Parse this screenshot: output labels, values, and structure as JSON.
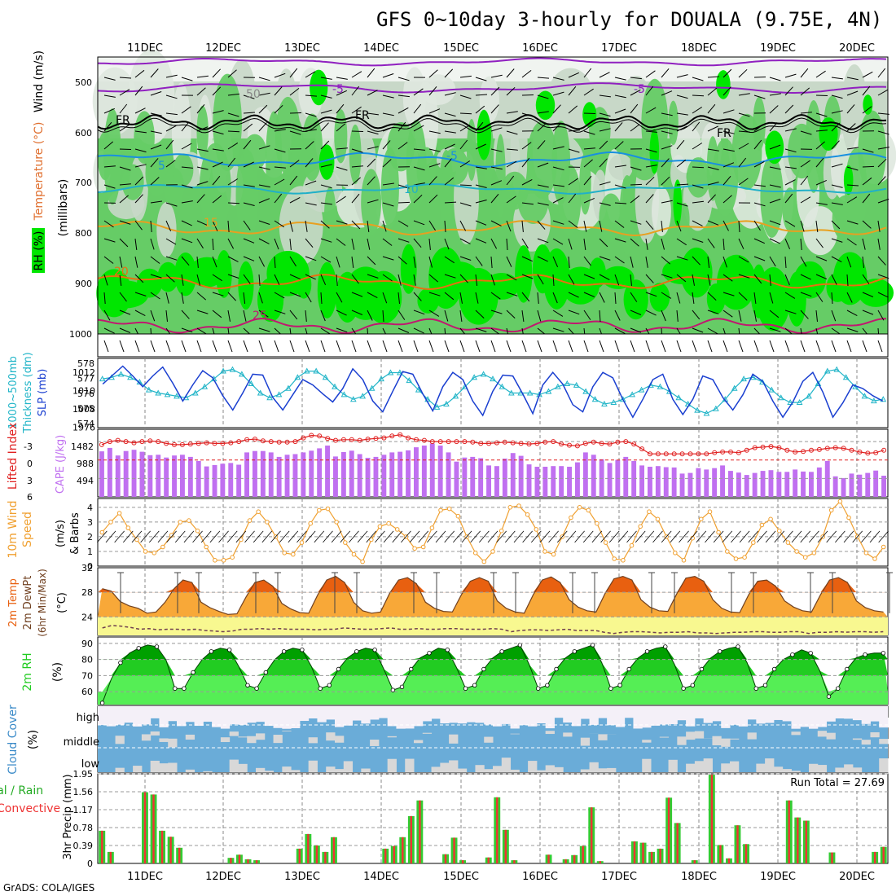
{
  "title": "GFS 0~10day 3-hourly for DOUALA (9.75E, 4N)",
  "credit": "GrADS: COLA/IGES",
  "dates": [
    "11DEC",
    "12DEC",
    "13DEC",
    "14DEC",
    "15DEC",
    "16DEC",
    "17DEC",
    "18DEC",
    "19DEC",
    "20DEC"
  ],
  "colors": {
    "rh_dark": "#00e600",
    "rh_mid": "#66cc66",
    "rh_light": "#c8d8c8",
    "slp": "#1a3fd0",
    "thick": "#22b5c8",
    "li": "#e02020",
    "cape": "#c070f0",
    "wind": "#f0a030",
    "temp_dark": "#e86010",
    "temp_mid": "#f8a838",
    "temp_low": "#f8f890",
    "rh2m_dark": "#00a000",
    "rh2m_mid": "#22cc22",
    "rh2m_light": "#55ee55",
    "cloud": "#6aacd8",
    "cloud_bg": "#d8d8d8",
    "rain": "#33cc33",
    "conv": "#ee3333"
  },
  "panels": {
    "upper": {
      "labels": [
        "Wind (m/s)",
        "Temperature (°C)",
        "RH (%)",
        "(millibars)"
      ],
      "yticks": [
        "500",
        "600",
        "700",
        "800",
        "900",
        "1000"
      ],
      "contours": [
        "-5",
        "-5",
        "FR",
        "FR",
        "FR",
        "5",
        "-5",
        "10",
        "15",
        "20",
        "25",
        "50"
      ]
    },
    "slp": {
      "labels": [
        "SLP (mb)",
        "Thickness (dm)",
        "1000~500mb"
      ],
      "yticks_left": [
        "578",
        "577",
        "576",
        "575",
        "574"
      ],
      "yticks_right": [
        "1012",
        "1010",
        "1008",
        "1976"
      ]
    },
    "li": {
      "labels": [
        "Lifted Index",
        "CAPE (J/kg)"
      ],
      "yticks_left": [
        "-3",
        "0",
        "3",
        "6"
      ],
      "yticks_right": [
        "1482",
        "988",
        "494"
      ]
    },
    "wind": {
      "labels": [
        "10m Wind",
        "Speed",
        "(m/s)",
        "& Barbs"
      ],
      "yticks": [
        "4",
        "3",
        "2",
        "1",
        "0"
      ]
    },
    "temp": {
      "labels": [
        "2m Temp",
        "2m DewPt",
        "(6hr Min/Max)",
        "(°C)"
      ],
      "yticks": [
        "32",
        "28",
        "24"
      ]
    },
    "rh": {
      "labels": [
        "2m RH",
        "(%)"
      ],
      "yticks": [
        "90",
        "80",
        "70",
        "60"
      ]
    },
    "cloud": {
      "labels": [
        "Cloud Cover",
        "(%)"
      ],
      "levels": [
        "high",
        "middle",
        "low"
      ]
    },
    "precip": {
      "labels": [
        "Total / Rain",
        "Convective",
        "3hr Precip (mm)"
      ],
      "yticks": [
        "1.95",
        "1.56",
        "1.17",
        "0.78",
        "0.39",
        "0"
      ],
      "run_total": "Run Total = 27.69"
    }
  },
  "chart_data": [
    {
      "type": "line",
      "name": "slp",
      "ylabel": "SLP (mb)",
      "ylim": [
        1006,
        1013
      ],
      "values": [
        1010.5,
        1011.5,
        1012.5,
        1011.4,
        1010.2,
        1011.4,
        1012.4,
        1010.6,
        1008.6,
        1010.4,
        1012.0,
        1011.2,
        1009.2,
        1007.6,
        1009.5,
        1011.6,
        1011.5,
        1009.0,
        1007.6,
        1009.3,
        1011.0,
        1010.4,
        1009.4,
        1008.5,
        1010.0,
        1012.2,
        1011.0,
        1008.6,
        1007.4,
        1009.7,
        1011.9,
        1011.6,
        1009.4,
        1007.5,
        1010.2,
        1011.8,
        1011.0,
        1008.6,
        1007.0,
        1009.7,
        1011.5,
        1011.4,
        1009.4,
        1007.2,
        1010.4,
        1011.8,
        1010.5,
        1008.2,
        1007.4,
        1010.2,
        1011.8,
        1011.2,
        1008.8,
        1006.8,
        1008.8,
        1011.0,
        1011.6,
        1008.8,
        1007.1,
        1008.8,
        1011.4,
        1011.0,
        1009.0,
        1007.6,
        1009.3,
        1011.6,
        1010.8,
        1008.6,
        1006.8,
        1008.5,
        1010.8,
        1011.8,
        1009.6,
        1006.8,
        1008.4,
        1010.4,
        1010.0,
        1009.2,
        1008.6
      ]
    },
    {
      "type": "line",
      "name": "thickness",
      "ylabel": "Thickness (dm)",
      "ylim": [
        574,
        578
      ],
      "values": [
        576.9,
        577.0,
        577.2,
        577.0,
        576.7,
        576.2,
        576.0,
        575.9,
        575.8,
        575.7,
        576.0,
        576.4,
        576.9,
        577.4,
        577.5,
        577.2,
        576.6,
        576.0,
        575.7,
        575.9,
        576.3,
        577.0,
        577.4,
        577.4,
        577.0,
        576.4,
        575.9,
        575.6,
        575.8,
        576.3,
        576.9,
        577.3,
        577.3,
        576.8,
        576.2,
        575.6,
        575.1,
        575.3,
        575.8,
        576.4,
        577.0,
        577.2,
        576.9,
        576.4,
        576.0,
        576.0,
        576.0,
        575.9,
        576.1,
        576.4,
        576.6,
        576.5,
        576.1,
        575.6,
        575.3,
        575.4,
        575.6,
        575.9,
        576.2,
        576.5,
        576.4,
        576.1,
        575.7,
        575.3,
        574.9,
        574.7,
        575.0,
        575.6,
        576.3,
        576.9,
        577.0,
        576.7,
        576.2,
        575.7,
        575.4,
        575.4,
        575.8,
        576.6,
        577.4,
        577.5,
        577.0,
        576.4,
        575.8,
        575.5,
        575.6
      ]
    },
    {
      "type": "line",
      "name": "lifted_index",
      "ylabel": "Lifted Index",
      "ylim": [
        6,
        -5
      ],
      "values": [
        -2.5,
        -3.0,
        -3.2,
        -3.0,
        -2.8,
        -3.0,
        -3.1,
        -3.0,
        -2.7,
        -2.5,
        -2.5,
        -2.6,
        -2.7,
        -2.8,
        -2.7,
        -2.7,
        -2.8,
        -3.0,
        -3.3,
        -3.4,
        -3.1,
        -3.0,
        -2.9,
        -2.9,
        -3.0,
        -3.6,
        -4.0,
        -3.9,
        -3.5,
        -3.2,
        -3.3,
        -3.3,
        -3.2,
        -3.4,
        -3.5,
        -3.6,
        -3.9,
        -4.1,
        -3.6,
        -3.3,
        -3.2,
        -3.0,
        -3.0,
        -3.0,
        -3.0,
        -3.0,
        -2.9,
        -2.7,
        -2.7,
        -2.8,
        -2.9,
        -2.8,
        -2.7,
        -2.6,
        -2.7,
        -2.9,
        -3.0,
        -2.6,
        -2.4,
        -2.3,
        -2.7,
        -2.9,
        -2.7,
        -2.6,
        -2.9,
        -3.0,
        -2.6,
        -1.8,
        -1.0,
        -1.0,
        -1.0,
        -1.0,
        -1.0,
        -1.0,
        -1.0,
        -1.0,
        -1.2,
        -1.3,
        -1.3,
        -1.2,
        -1.6,
        -2.0,
        -2.1,
        -2.2,
        -2.0,
        -1.6,
        -1.3,
        -1.4,
        -1.6,
        -1.7,
        -1.9,
        -2.0,
        -1.9,
        -1.6,
        -1.3,
        -1.1,
        -1.2,
        -1.6
      ]
    },
    {
      "type": "bar",
      "name": "cape",
      "ylabel": "CAPE (J/kg)",
      "ylim": [
        0,
        1976
      ],
      "values": [
        1330,
        1430,
        1210,
        1340,
        1375,
        1320,
        1220,
        1230,
        1150,
        1210,
        1230,
        1170,
        1050,
        890,
        930,
        970,
        990,
        940,
        1300,
        1340,
        1340,
        1300,
        1170,
        1230,
        1250,
        1300,
        1350,
        1420,
        1500,
        1180,
        1310,
        1350,
        1250,
        1140,
        1170,
        1230,
        1300,
        1320,
        1360,
        1450,
        1500,
        1560,
        1500,
        1300,
        1030,
        1150,
        1170,
        1130,
        920,
        900,
        1120,
        1280,
        1200,
        950,
        880,
        880,
        900,
        900,
        880,
        1010,
        1300,
        1230,
        1100,
        990,
        1080,
        1170,
        1050,
        920,
        880,
        900,
        870,
        860,
        680,
        700,
        840,
        800,
        840,
        920,
        760,
        710,
        640,
        700,
        760,
        780,
        730,
        730,
        800,
        740,
        730,
        860,
        1050,
        600,
        550,
        680,
        650,
        700,
        770,
        620
      ]
    },
    {
      "type": "line",
      "name": "wind_speed",
      "ylabel": "Speed (m/s)",
      "ylim": [
        0,
        4.6
      ],
      "values": [
        2.3,
        3.0,
        3.6,
        2.6,
        1.8,
        1.0,
        0.9,
        1.3,
        2.1,
        3.0,
        3.1,
        2.4,
        1.3,
        0.4,
        0.4,
        0.6,
        1.8,
        3.1,
        3.7,
        3.0,
        2.0,
        0.9,
        0.8,
        1.6,
        2.9,
        3.8,
        3.9,
        3.0,
        1.6,
        0.8,
        0.3,
        1.8,
        2.7,
        2.9,
        2.5,
        2.0,
        1.2,
        1.3,
        2.6,
        3.8,
        3.9,
        3.4,
        2.0,
        0.9,
        0.3,
        1.0,
        2.4,
        4.0,
        4.1,
        3.5,
        2.5,
        1.0,
        0.8,
        2.0,
        3.3,
        4.0,
        3.8,
        2.9,
        1.6,
        0.5,
        0.4,
        1.4,
        2.7,
        3.7,
        3.2,
        2.0,
        0.9,
        0.4,
        1.9,
        3.2,
        3.7,
        2.3,
        1.0,
        0.5,
        0.6,
        1.6,
        2.8,
        3.2,
        2.4,
        1.6,
        1.0,
        0.6,
        0.9,
        2.0,
        3.8,
        4.4,
        3.3,
        2.0,
        0.9,
        0.5,
        1.3
      ]
    },
    {
      "type": "area",
      "name": "temp_2m",
      "ylabel": "(°C)",
      "ylim": [
        21,
        32
      ],
      "values": [
        28.6,
        28.2,
        26.5,
        25.8,
        25.4,
        24.6,
        24.8,
        26.4,
        28.6,
        30.0,
        29.6,
        26.4,
        25.5,
        24.9,
        24.4,
        24.5,
        27.2,
        29.6,
        30.0,
        29.0,
        26.2,
        25.3,
        24.7,
        24.6,
        27.6,
        30.0,
        30.6,
        29.6,
        26.4,
        25.0,
        24.6,
        24.8,
        27.8,
        30.0,
        30.4,
        29.4,
        26.4,
        25.4,
        24.9,
        24.8,
        27.6,
        29.8,
        30.4,
        29.8,
        26.6,
        25.4,
        24.8,
        24.6,
        27.6,
        30.0,
        30.5,
        29.6,
        26.8,
        25.6,
        25.0,
        24.8,
        27.8,
        30.2,
        30.6,
        30.0,
        26.8,
        25.6,
        25.0,
        24.9,
        27.8,
        30.3,
        30.6,
        29.8,
        26.8,
        25.4,
        24.8,
        24.7,
        27.6,
        29.8,
        30.0,
        29.0,
        26.6,
        25.6,
        25.0,
        24.8,
        27.6,
        30.0,
        30.4,
        29.6,
        26.6,
        25.5,
        25.0,
        24.8
      ]
    },
    {
      "type": "line",
      "name": "dewpoint_2m",
      "ylabel": "(°C)",
      "ylim": [
        21,
        32
      ],
      "values": [
        22.2,
        22.6,
        22.5,
        22.3,
        22.0,
        22.1,
        21.9,
        22.0,
        22.0,
        21.9,
        22.0,
        21.8,
        21.7,
        21.6,
        21.7,
        22.0,
        22.0,
        22.1,
        22.0,
        22.1,
        22.0,
        22.0,
        22.0,
        21.9,
        22.0,
        22.0,
        22.2,
        22.1,
        22.0,
        22.0,
        22.1,
        22.2,
        22.0,
        22.0,
        22.1,
        22.0,
        22.0,
        22.1,
        22.1,
        22.0,
        22.0,
        22.0,
        22.1,
        22.0,
        21.6,
        21.8,
        21.9,
        21.9,
        21.8,
        21.9,
        22.0,
        21.8,
        21.8,
        21.8,
        21.5,
        21.3,
        21.5,
        21.6,
        21.6,
        21.5,
        21.4,
        21.5,
        21.5,
        21.6,
        21.4,
        21.4,
        21.3,
        21.4,
        21.5,
        21.5,
        21.6,
        21.6,
        21.5,
        21.5,
        21.6,
        21.6,
        21.3,
        21.5,
        21.5,
        21.6,
        21.5,
        21.6,
        21.6,
        21.5,
        21.6
      ]
    },
    {
      "type": "area",
      "name": "rh_2m",
      "ylabel": "(%)",
      "ylim": [
        52,
        94
      ],
      "values": [
        53,
        68,
        78,
        84,
        87,
        89,
        88,
        80,
        62,
        62,
        72,
        80,
        85,
        87,
        86,
        76,
        64,
        62,
        72,
        80,
        85,
        87,
        86,
        76,
        62,
        64,
        74,
        81,
        85,
        87,
        86,
        74,
        61,
        63,
        74,
        81,
        84,
        87,
        86,
        75,
        62,
        64,
        74,
        81,
        85,
        87,
        89,
        77,
        62,
        64,
        74,
        81,
        85,
        87,
        89,
        78,
        62,
        64,
        74,
        81,
        85,
        87,
        88,
        77,
        62,
        64,
        74,
        81,
        85,
        87,
        88,
        78,
        62,
        64,
        74,
        80,
        83,
        86,
        84,
        73,
        57,
        62,
        74,
        81,
        83,
        84,
        84
      ]
    },
    {
      "type": "bar",
      "name": "total_precip",
      "ylabel": "3hr Precip (mm)",
      "ylim": [
        0,
        1.95
      ],
      "values": [
        0.71,
        0.25,
        0,
        0,
        0,
        1.55,
        1.5,
        0.71,
        0.58,
        0.34,
        0,
        0,
        0,
        0,
        0,
        0.12,
        0.19,
        0.09,
        0.07,
        0,
        0,
        0,
        0,
        0.32,
        0.64,
        0.39,
        0.25,
        0.57,
        0,
        0,
        0,
        0,
        0,
        0.32,
        0.38,
        0.57,
        1.03,
        1.37,
        0,
        0,
        0.2,
        0.56,
        0.07,
        0,
        0,
        0.13,
        1.44,
        0.73,
        0.07,
        0,
        0,
        0,
        0.19,
        0,
        0.09,
        0.18,
        0.38,
        1.22,
        0.05,
        0,
        0,
        0,
        0.48,
        0.45,
        0.25,
        0.32,
        1.43,
        0.88,
        0,
        0.07,
        0,
        1.93,
        0.4,
        0.11,
        0.83,
        0.42,
        0,
        0,
        0,
        0,
        1.37,
        1.0,
        0.93,
        0,
        0,
        0.24,
        0,
        0,
        0,
        0,
        0.25,
        0.36
      ]
    },
    {
      "type": "table",
      "name": "cloud_cover",
      "note": "high/middle/low layers shown as blue bands",
      "categories": [
        "high",
        "middle",
        "low"
      ]
    }
  ]
}
